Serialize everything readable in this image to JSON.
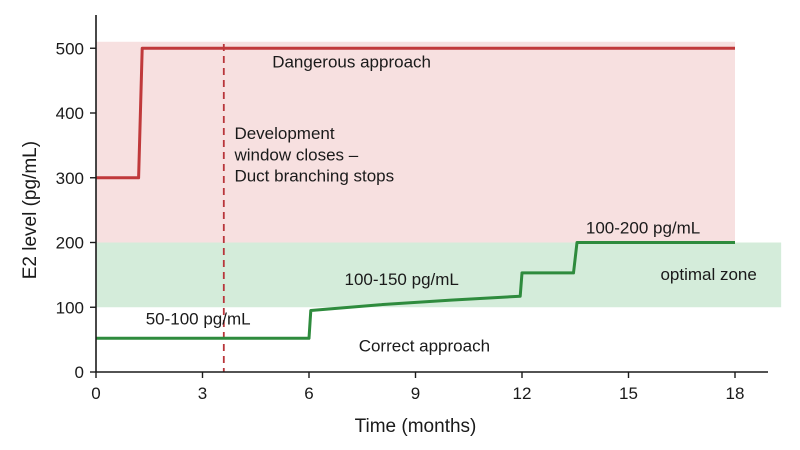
{
  "chart_data": {
    "type": "line",
    "xlabel": "Time (months)",
    "ylabel": "E2 level (pg/mL)",
    "xlim": [
      0,
      19
    ],
    "ylim": [
      0,
      520
    ],
    "x_ticks": [
      0,
      3,
      6,
      9,
      12,
      15,
      18
    ],
    "y_ticks": [
      0,
      100,
      200,
      300,
      400,
      500
    ],
    "bands": [
      {
        "name": "dangerous",
        "y_range": [
          200,
          510
        ],
        "x_range": [
          0,
          18
        ],
        "color": "#f7e0e0"
      },
      {
        "name": "optimal",
        "y_range": [
          100,
          200
        ],
        "x_range": [
          0,
          19.3
        ],
        "color": "#d4ecda"
      }
    ],
    "series": [
      {
        "key": "dangerous",
        "color": "#c0393b",
        "points": [
          [
            0,
            300
          ],
          [
            1.2,
            300
          ],
          [
            1.3,
            500
          ],
          [
            18,
            500
          ]
        ]
      },
      {
        "key": "correct",
        "color": "#2e8b3d",
        "points": [
          [
            0,
            52
          ],
          [
            6,
            52
          ],
          [
            6.05,
            95
          ],
          [
            8,
            104
          ],
          [
            10,
            111
          ],
          [
            11.95,
            117
          ],
          [
            12,
            153
          ],
          [
            13.45,
            153
          ],
          [
            13.55,
            200
          ],
          [
            18,
            200
          ]
        ]
      }
    ],
    "vline": {
      "x": 3.6,
      "color": "#b8353a"
    },
    "annotations": {
      "dangerous_label": {
        "text": "Dangerous approach",
        "x": 7.2,
        "y": 470
      },
      "window_line1": {
        "text": "Development",
        "x": 3.9,
        "y": 360
      },
      "window_line2": {
        "text": "window closes –",
        "x": 3.9,
        "y": 327
      },
      "window_line3": {
        "text": "Duct branching stops",
        "x": 3.9,
        "y": 294
      },
      "range_200": {
        "text": "100-200 pg/mL",
        "x": 13.8,
        "y": 214
      },
      "optimal_label": {
        "text": "optimal zone",
        "x": 15.9,
        "y": 142
      },
      "range_150": {
        "text": "100-150 pg/mL",
        "x": 7,
        "y": 134
      },
      "range_100": {
        "text": "50-100 pg/mL",
        "x": 1.4,
        "y": 73
      },
      "correct_label": {
        "text": "Correct approach",
        "x": 7.4,
        "y": 32
      }
    }
  }
}
